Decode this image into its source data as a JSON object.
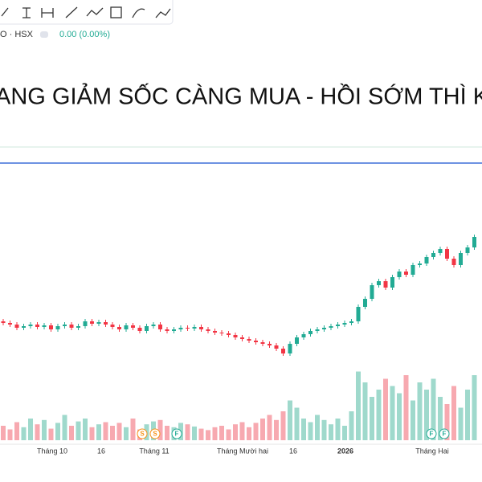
{
  "symbol": "O · HSX",
  "change": "0.00 (0.00%)",
  "headline": "ANG GIẢM SỐC CÀNG MUA - HỒI SỚM THÌ KHÓ",
  "x_labels": [
    "Tháng 10",
    "16",
    "Tháng 11",
    "Tháng Mười hai",
    "16",
    "2026",
    "Tháng Hai"
  ],
  "events": [
    "S",
    "S",
    "F",
    "F",
    "F"
  ],
  "candles": {
    "open": [
      200,
      198,
      196,
      192,
      194,
      196,
      193,
      195,
      190,
      194,
      196,
      192,
      194,
      200,
      197,
      199,
      196,
      193,
      190,
      195,
      192,
      188,
      194,
      196,
      190,
      188,
      190,
      192,
      191,
      193,
      190,
      188,
      186,
      185,
      183,
      180,
      178,
      176,
      174,
      172,
      170,
      166,
      160,
      172,
      180,
      184,
      188,
      190,
      192,
      194,
      196,
      198,
      200,
      218,
      228,
      245,
      250,
      242,
      255,
      262,
      258,
      270,
      272,
      280,
      285,
      290,
      278,
      270,
      285,
      292
    ],
    "close": [
      198,
      196,
      192,
      194,
      196,
      193,
      195,
      190,
      194,
      196,
      192,
      194,
      200,
      197,
      199,
      196,
      193,
      190,
      195,
      192,
      188,
      194,
      196,
      190,
      188,
      190,
      192,
      191,
      193,
      190,
      188,
      186,
      185,
      183,
      180,
      178,
      176,
      174,
      172,
      170,
      166,
      160,
      172,
      180,
      184,
      188,
      190,
      192,
      194,
      196,
      198,
      200,
      218,
      228,
      245,
      250,
      242,
      255,
      262,
      258,
      270,
      272,
      280,
      285,
      290,
      278,
      270,
      285,
      292,
      305
    ],
    "volume": [
      20,
      15,
      25,
      18,
      30,
      22,
      28,
      16,
      24,
      35,
      20,
      26,
      30,
      18,
      22,
      25,
      20,
      24,
      18,
      30,
      15,
      22,
      26,
      28,
      20,
      18,
      24,
      22,
      19,
      16,
      14,
      18,
      20,
      15,
      22,
      25,
      18,
      24,
      30,
      35,
      28,
      40,
      55,
      45,
      30,
      25,
      35,
      28,
      22,
      30,
      20,
      40,
      95,
      80,
      60,
      70,
      85,
      75,
      65,
      90,
      55,
      80,
      70,
      85,
      60,
      50,
      75,
      45,
      70,
      90
    ]
  }
}
